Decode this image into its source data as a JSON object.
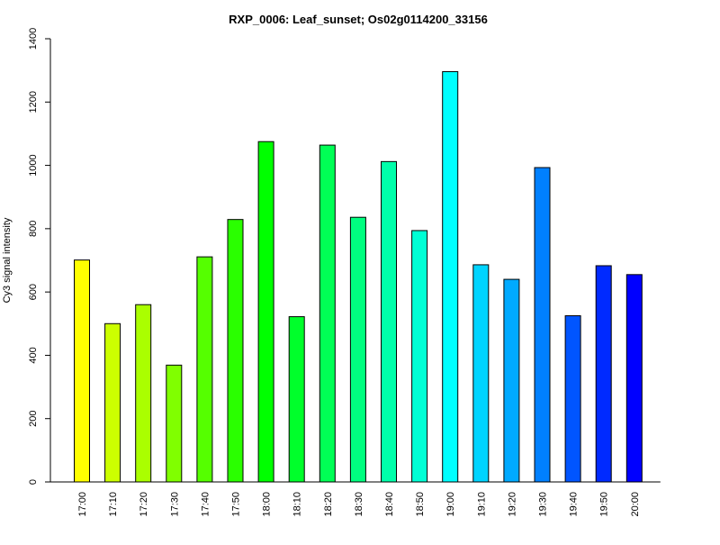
{
  "chart_data": {
    "type": "bar",
    "title": "RXP_0006: Leaf_sunset; Os02g0114200_33156",
    "xlabel": "",
    "ylabel": "Cy3 signal intensity",
    "ylim": [
      0,
      1400
    ],
    "yticks": [
      0,
      200,
      400,
      600,
      800,
      1000,
      1200,
      1400
    ],
    "categories": [
      "17:00",
      "17:10",
      "17:20",
      "17:30",
      "17:40",
      "17:50",
      "18:00",
      "18:10",
      "18:20",
      "18:30",
      "18:40",
      "18:50",
      "19:00",
      "19:10",
      "19:20",
      "19:30",
      "19:40",
      "19:50",
      "20:00"
    ],
    "values": [
      701,
      500,
      560,
      369,
      711,
      829,
      1075,
      522,
      1064,
      836,
      1012,
      794,
      1296,
      686,
      640,
      993,
      525,
      683,
      655
    ],
    "colors": [
      "#ffff00",
      "#ccff00",
      "#aaff00",
      "#80ff00",
      "#55ff00",
      "#2aff00",
      "#00ff00",
      "#00ff2b",
      "#00ff55",
      "#00ff80",
      "#00ffaa",
      "#00ffd5",
      "#00ffff",
      "#00d4ff",
      "#00aaff",
      "#0080ff",
      "#0055ff",
      "#002aff",
      "#0000ff"
    ],
    "grid": false,
    "legend": "none"
  }
}
